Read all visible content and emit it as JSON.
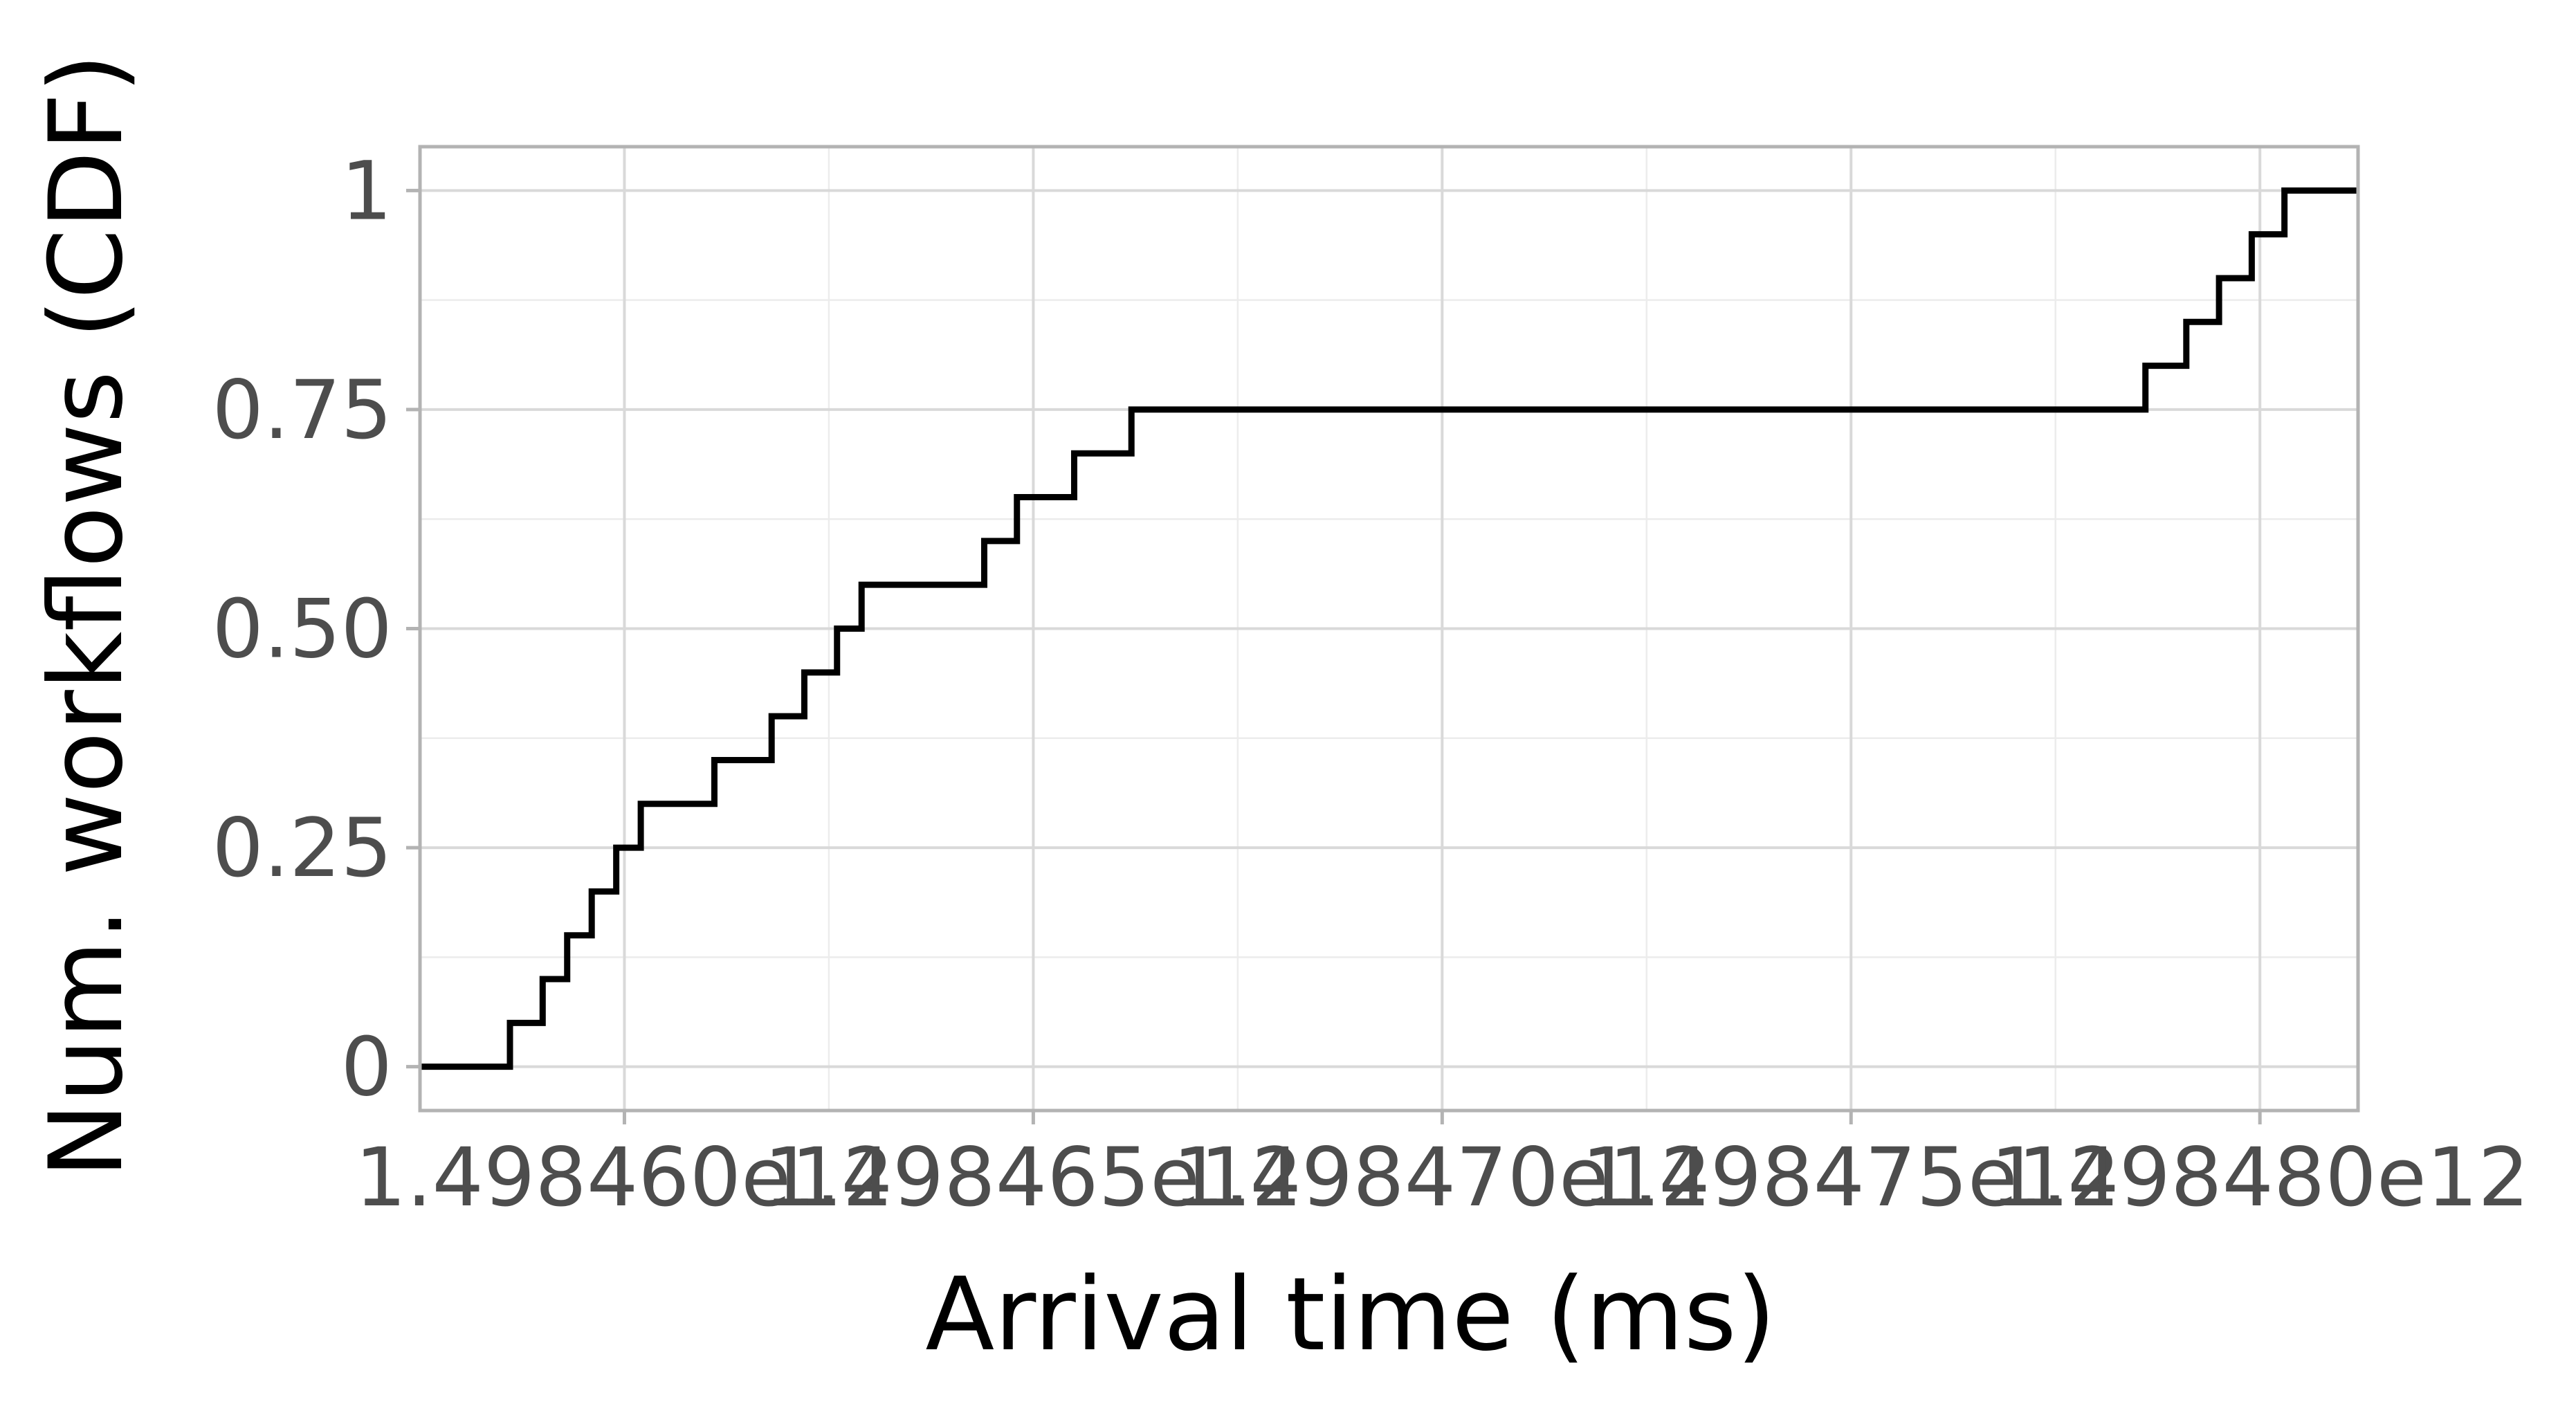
{
  "chart_data": {
    "type": "line",
    "step": true,
    "title": "",
    "xlabel": "Arrival time (ms)",
    "ylabel": "Num. workflows (CDF)",
    "xlim": [
      1498457500000.0,
      1498481200000.0
    ],
    "ylim": [
      -0.05,
      1.05
    ],
    "x_major_ticks": [
      1498460000000.0,
      1498465000000.0,
      1498470000000.0,
      1498475000000.0,
      1498480000000.0
    ],
    "x_tick_labels": [
      "1.498460e12",
      "1.498465e12",
      "1.498470e12",
      "1.498475e12",
      "1.498480e12"
    ],
    "y_major_ticks": [
      0,
      0.25,
      0.5,
      0.75,
      1
    ],
    "y_tick_labels": [
      "0",
      "0.25",
      "0.50",
      "0.75",
      "1"
    ],
    "grid": true,
    "line_color": "#000000",
    "grid_color": "#d9d9d9",
    "panel_border_color": "#b3b3b3",
    "tick_label_color": "#4d4d4d",
    "series": [
      {
        "x": [
          1498457500000.0,
          1498458600000.0,
          1498459000000.0,
          1498459300000.0,
          1498459600000.0,
          1498459900000.0,
          1498460200000.0,
          1498461100000.0,
          1498461800000.0,
          1498462200000.0,
          1498462600000.0,
          1498462900000.0,
          1498464400000.0,
          1498464800000.0,
          1498465500000.0,
          1498466200000.0,
          1498478600000.0,
          1498479100000.0,
          1498479500000.0,
          1498479900000.0,
          1498480300000.0,
          1498481200000.0
        ],
        "y": [
          0,
          0.05,
          0.1,
          0.15,
          0.2,
          0.25,
          0.3,
          0.35,
          0.4,
          0.45,
          0.5,
          0.55,
          0.6,
          0.65,
          0.7,
          0.75,
          0.8,
          0.85,
          0.9,
          0.95,
          1,
          1
        ]
      }
    ]
  }
}
